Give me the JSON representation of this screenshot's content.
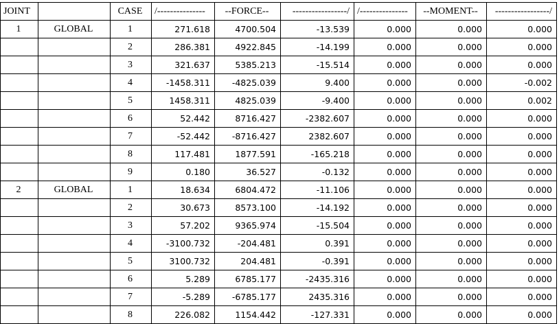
{
  "headers": [
    "JOINT",
    "",
    "CASE",
    "/---------------",
    "--FORCE--",
    "-----------------/",
    "/---------------",
    "--MOMENT--",
    "-----------------/"
  ],
  "rows": [
    {
      "joint": "1",
      "system": "GLOBAL",
      "case": "1",
      "values": [
        "271.618",
        "4700.504",
        "-13.539",
        "0.000",
        "0.000",
        "0.000"
      ]
    },
    {
      "joint": "",
      "system": "",
      "case": "2",
      "values": [
        "286.381",
        "4922.845",
        "-14.199",
        "0.000",
        "0.000",
        "0.000"
      ]
    },
    {
      "joint": "",
      "system": "",
      "case": "3",
      "values": [
        "321.637",
        "5385.213",
        "-15.514",
        "0.000",
        "0.000",
        "0.000"
      ]
    },
    {
      "joint": "",
      "system": "",
      "case": "4",
      "values": [
        "-1458.311",
        "-4825.039",
        "9.400",
        "0.000",
        "0.000",
        "-0.002"
      ]
    },
    {
      "joint": "",
      "system": "",
      "case": "5",
      "values": [
        "1458.311",
        "4825.039",
        "-9.400",
        "0.000",
        "0.000",
        "0.002"
      ]
    },
    {
      "joint": "",
      "system": "",
      "case": "6",
      "values": [
        "52.442",
        "8716.427",
        "-2382.607",
        "0.000",
        "0.000",
        "0.000"
      ]
    },
    {
      "joint": "",
      "system": "",
      "case": "7",
      "values": [
        "-52.442",
        "-8716.427",
        "2382.607",
        "0.000",
        "0.000",
        "0.000"
      ]
    },
    {
      "joint": "",
      "system": "",
      "case": "8",
      "values": [
        "117.481",
        "1877.591",
        "-165.218",
        "0.000",
        "0.000",
        "0.000"
      ]
    },
    {
      "joint": "",
      "system": "",
      "case": "9",
      "values": [
        "0.180",
        "36.527",
        "-0.132",
        "0.000",
        "0.000",
        "0.000"
      ]
    },
    {
      "joint": "2",
      "system": "GLOBAL",
      "case": "1",
      "values": [
        "18.634",
        "6804.472",
        "-11.106",
        "0.000",
        "0.000",
        "0.000"
      ]
    },
    {
      "joint": "",
      "system": "",
      "case": "2",
      "values": [
        "30.673",
        "8573.100",
        "-14.192",
        "0.000",
        "0.000",
        "0.000"
      ]
    },
    {
      "joint": "",
      "system": "",
      "case": "3",
      "values": [
        "57.202",
        "9365.974",
        "-15.504",
        "0.000",
        "0.000",
        "0.000"
      ]
    },
    {
      "joint": "",
      "system": "",
      "case": "4",
      "values": [
        "-3100.732",
        "-204.481",
        "0.391",
        "0.000",
        "0.000",
        "0.000"
      ]
    },
    {
      "joint": "",
      "system": "",
      "case": "5",
      "values": [
        "3100.732",
        "204.481",
        "-0.391",
        "0.000",
        "0.000",
        "0.000"
      ]
    },
    {
      "joint": "",
      "system": "",
      "case": "6",
      "values": [
        "5.289",
        "6785.177",
        "-2435.316",
        "0.000",
        "0.000",
        "0.000"
      ]
    },
    {
      "joint": "",
      "system": "",
      "case": "7",
      "values": [
        "-5.289",
        "-6785.177",
        "2435.316",
        "0.000",
        "0.000",
        "0.000"
      ]
    },
    {
      "joint": "",
      "system": "",
      "case": "8",
      "values": [
        "226.082",
        "1154.442",
        "-127.331",
        "0.000",
        "0.000",
        "0.000"
      ]
    }
  ]
}
